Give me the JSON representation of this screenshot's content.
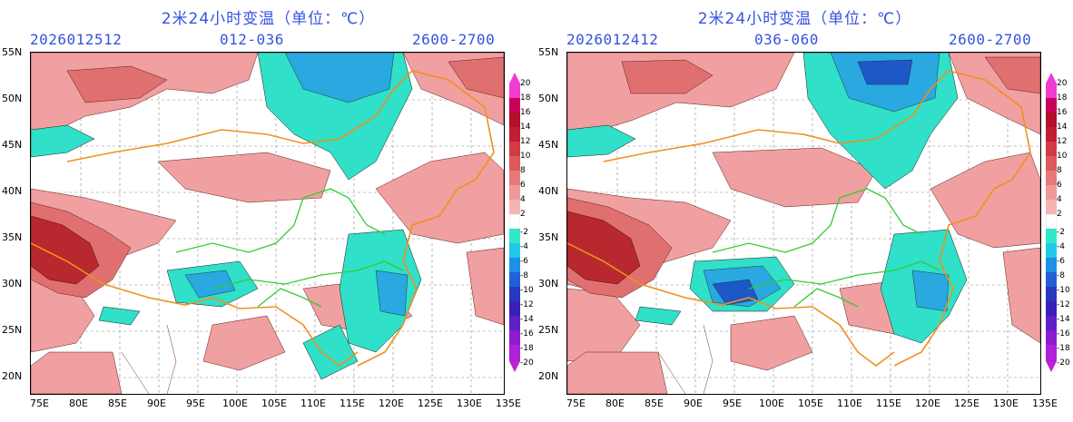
{
  "panels": [
    {
      "title": "2米24小时变温（单位：℃）",
      "date": "2026012512",
      "range": "012-036",
      "level": "2600-2700"
    },
    {
      "title": "2米24小时变温（单位：℃）",
      "date": "2026012412",
      "range": "036-060",
      "level": "2600-2700"
    }
  ],
  "lat_labels": [
    "55N",
    "50N",
    "45N",
    "40N",
    "35N",
    "30N",
    "25N",
    "20N"
  ],
  "lon_labels": [
    "75E",
    "80E",
    "85E",
    "90E",
    "95E",
    "100E",
    "105E",
    "110E",
    "115E",
    "120E",
    "125E",
    "130E",
    "135E"
  ],
  "colorbar": {
    "labels": [
      "20",
      "18",
      "16",
      "14",
      "12",
      "10",
      "8",
      "6",
      "4",
      "2",
      "-2",
      "-4",
      "-6",
      "-8",
      "-10",
      "-12",
      "-14",
      "-16",
      "-18",
      "-20"
    ],
    "colors": [
      "#f03cd0",
      "#c8005a",
      "#b3102a",
      "#c01e32",
      "#d23a46",
      "#dc5a5c",
      "#e67878",
      "#ef9898",
      "#f5b4b4",
      "#ffffff",
      "#30e8c8",
      "#22c8e8",
      "#1e90e8",
      "#2060d8",
      "#2838c0",
      "#3a20b8",
      "#6020c8",
      "#8c1cd0",
      "#b020d8",
      "#c020d0"
    ]
  },
  "colors": {
    "warm_light": "#f0a0a0",
    "warm_mid": "#e07070",
    "warm_dark": "#b8282e",
    "cold_light": "#30e0c8",
    "cold_mid": "#2aa8e0",
    "cold_dark": "#1e58c8",
    "border_orange": "#f0901e",
    "river_green": "#33cc33",
    "title_blue": "#3553e0"
  }
}
